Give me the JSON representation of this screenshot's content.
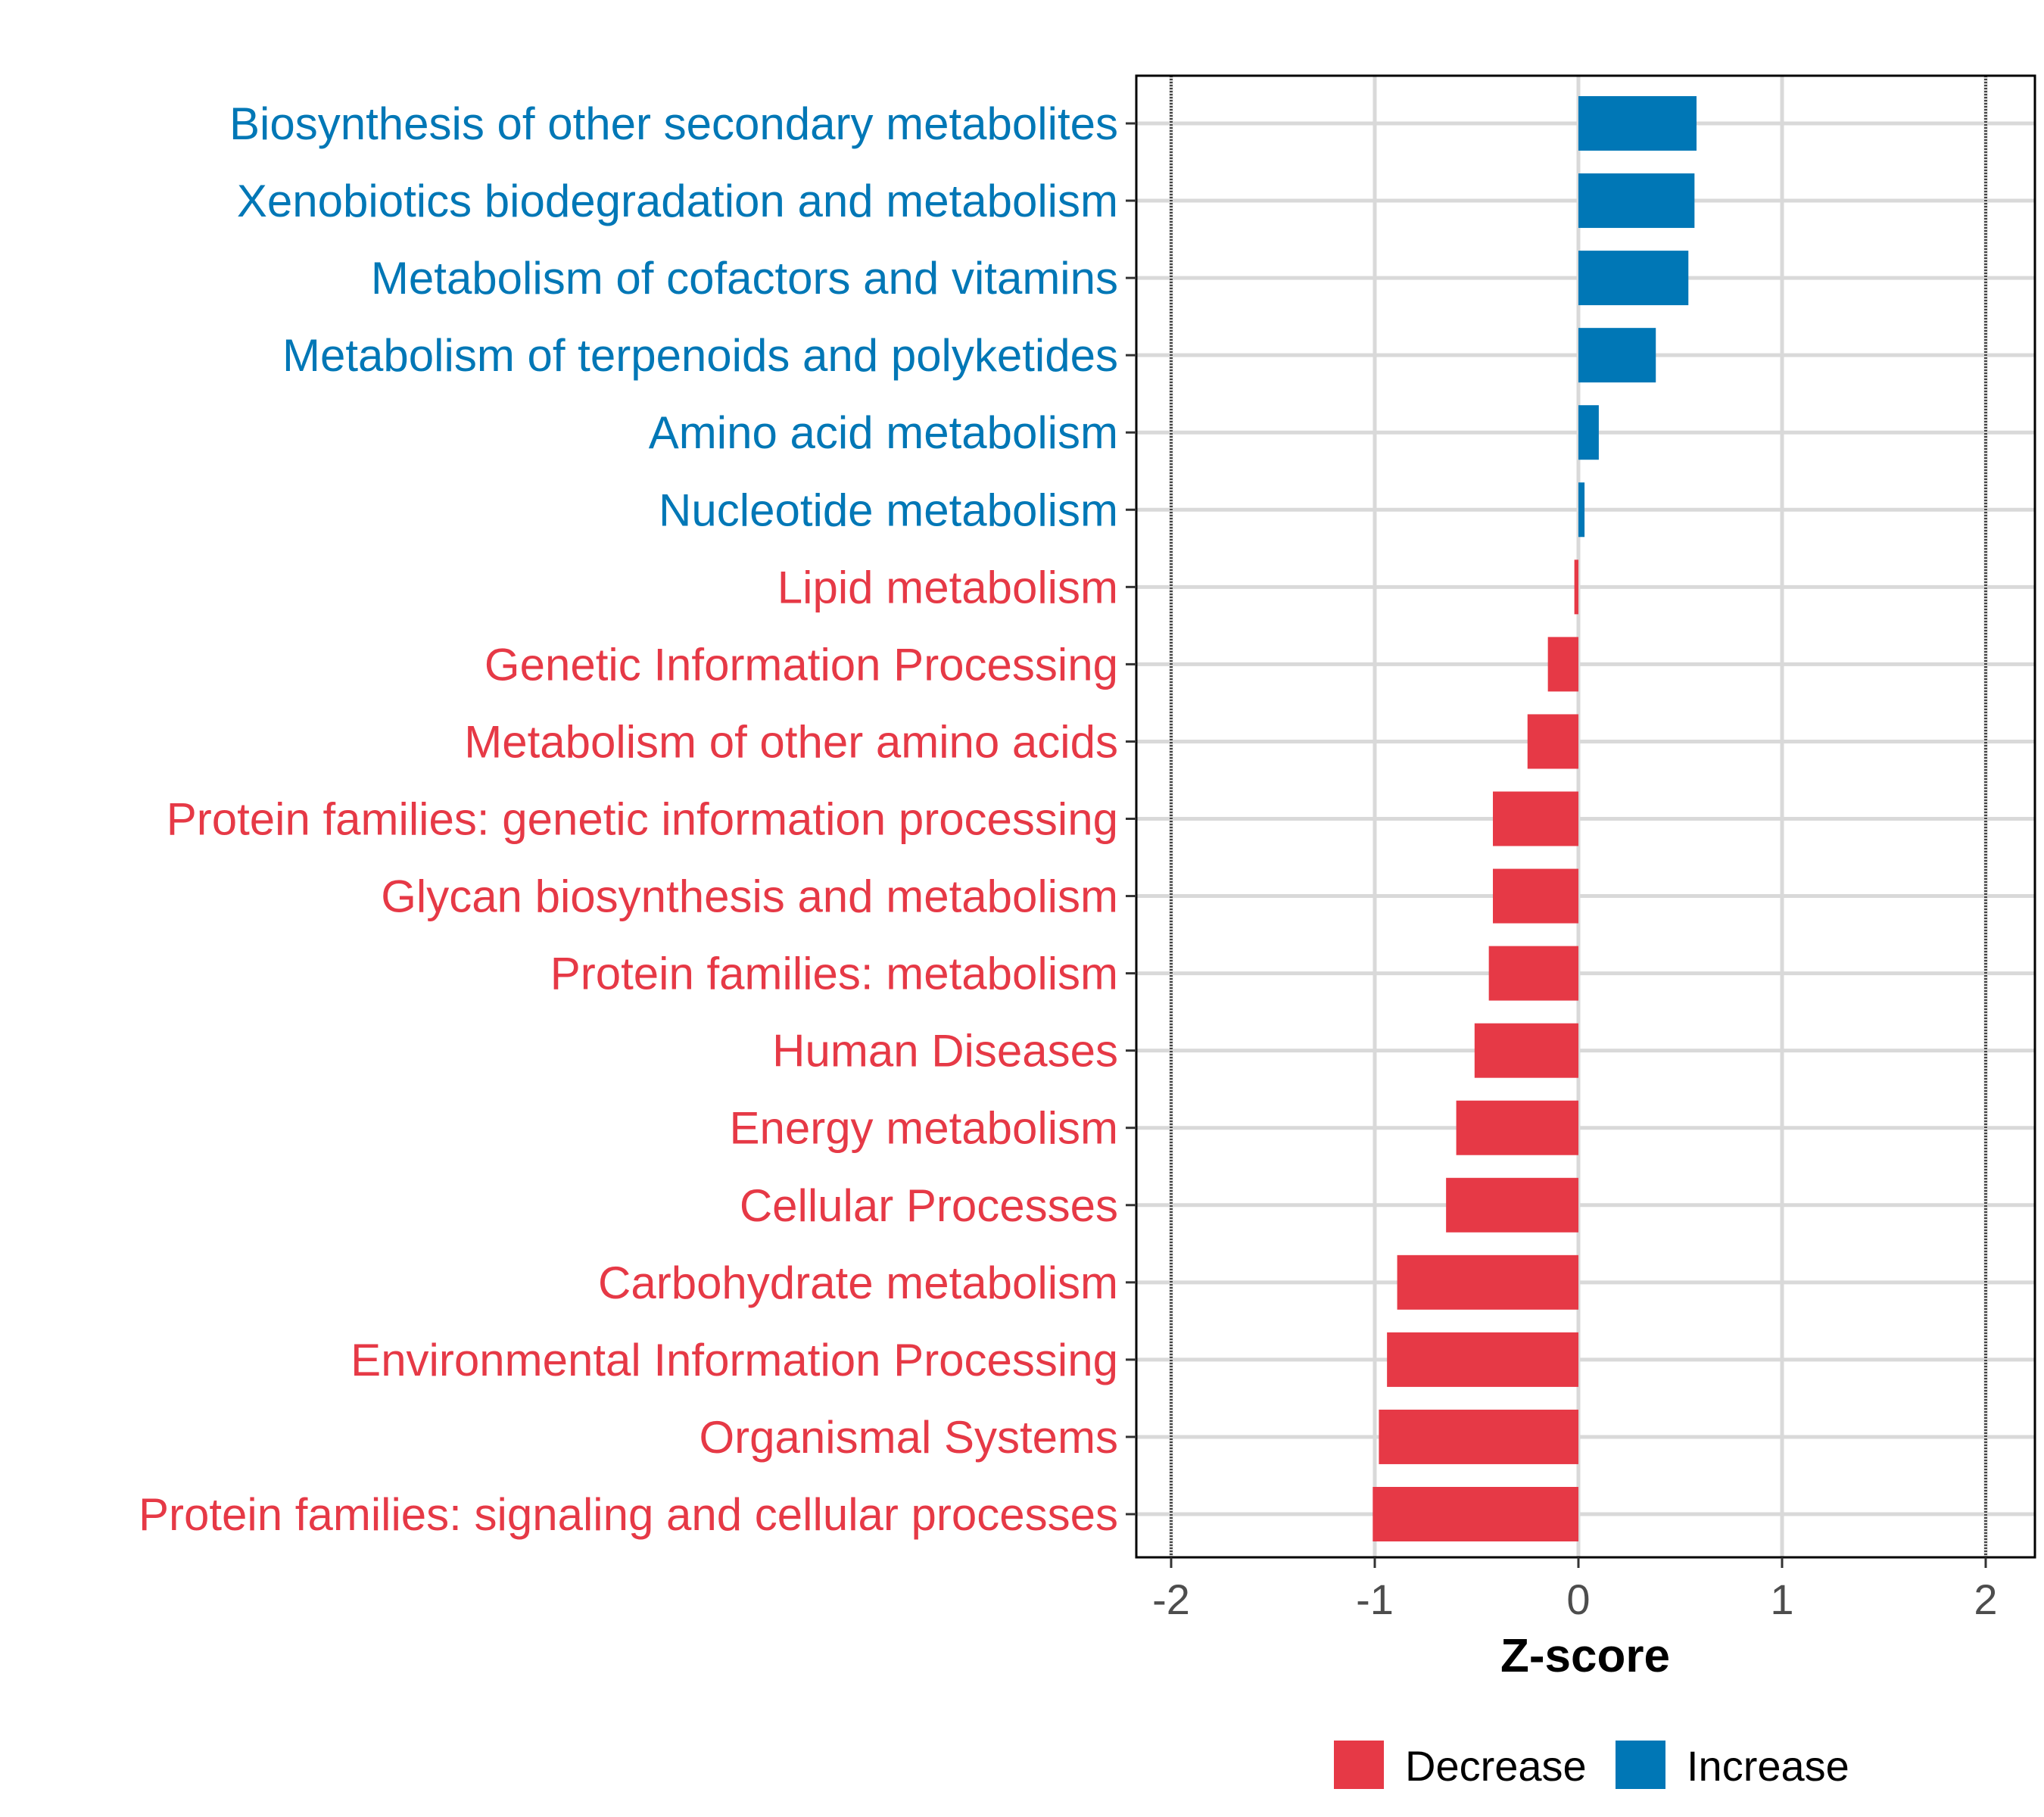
{
  "chart_data": {
    "type": "bar",
    "orientation": "horizontal",
    "xlabel": "Z-score",
    "ylabel": "",
    "xlim": [
      -2.1,
      2.2
    ],
    "x_ticks": [
      -2,
      -1,
      0,
      1,
      2
    ],
    "x_tick_labels": [
      "-2",
      "-1",
      "0",
      "1",
      "2"
    ],
    "reference_lines": [
      -2,
      2
    ],
    "grid": true,
    "categories": [
      "Biosynthesis of other secondary metabolites",
      "Xenobiotics biodegradation and metabolism",
      "Metabolism of cofactors and vitamins",
      "Metabolism of terpenoids and polyketides",
      "Amino acid metabolism",
      "Nucleotide metabolism",
      "Lipid metabolism",
      "Genetic Information Processing",
      "Metabolism of other amino acids",
      "Protein families: genetic information processing",
      "Glycan biosynthesis and metabolism",
      "Protein families: metabolism",
      "Human Diseases",
      "Energy metabolism",
      "Cellular Processes",
      "Carbohydrate metabolism",
      "Environmental Information Processing",
      "Organismal Systems",
      "Protein families: signaling and cellular processes"
    ],
    "values": [
      0.58,
      0.57,
      0.54,
      0.38,
      0.1,
      0.03,
      -0.02,
      -0.15,
      -0.25,
      -0.42,
      -0.42,
      -0.44,
      -0.51,
      -0.6,
      -0.65,
      -0.89,
      -0.94,
      -0.98,
      -1.01
    ],
    "legend": {
      "position": "bottom",
      "entries": [
        {
          "label": "Decrease",
          "color": "#E63946"
        },
        {
          "label": "Increase",
          "color": "#0077B6"
        }
      ]
    },
    "colors": {
      "increase": "#0077B6",
      "decrease": "#E63946",
      "grid": "#D9D9D9"
    }
  }
}
